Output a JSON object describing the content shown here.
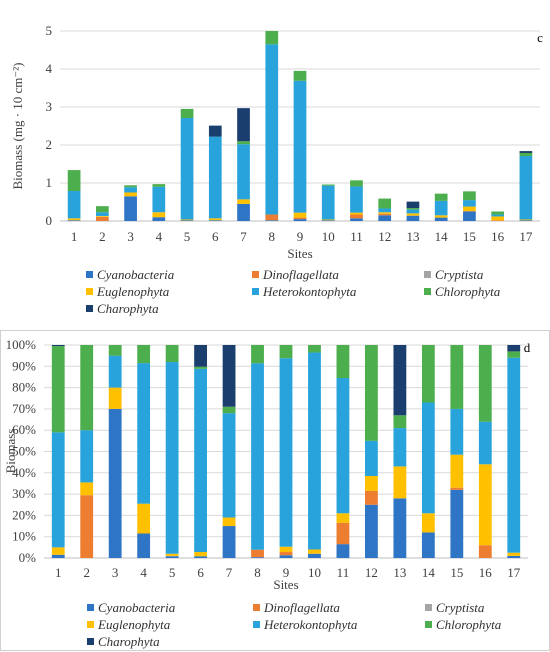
{
  "chart_data": [
    {
      "type": "bar",
      "stacked": true,
      "panel_label": "c",
      "ylabel": "Biomass (mg · 10 cm⁻²)",
      "xlabel": "Sites",
      "ylim": [
        0,
        5
      ],
      "yticks": [
        "0",
        "1",
        "2",
        "3",
        "4",
        "5"
      ],
      "grid": true,
      "legend_position": "bottom",
      "categories": [
        "1",
        "2",
        "3",
        "4",
        "5",
        "6",
        "7",
        "8",
        "9",
        "10",
        "11",
        "12",
        "13",
        "14",
        "15",
        "16",
        "17"
      ],
      "series": [
        {
          "name": "Cyanobacteria",
          "color": "#2e75c5",
          "values": [
            0.02,
            0.0,
            0.65,
            0.1,
            0.02,
            0.02,
            0.45,
            0.02,
            0.05,
            0.02,
            0.07,
            0.15,
            0.14,
            0.09,
            0.25,
            0.0,
            0.02
          ]
        },
        {
          "name": "Dinoflagellata",
          "color": "#ed7d31",
          "values": [
            0.0,
            0.11,
            0.0,
            0.0,
            0.0,
            0.0,
            0.0,
            0.15,
            0.04,
            0.0,
            0.1,
            0.04,
            0.0,
            0.0,
            0.01,
            0.02,
            0.0
          ]
        },
        {
          "name": "Cryptista",
          "color": "#a5a5a5",
          "values": [
            0.0,
            0.0,
            0.0,
            0.0,
            0.0,
            0.0,
            0.0,
            0.0,
            0.0,
            0.0,
            0.0,
            0.0,
            0.0,
            0.0,
            0.0,
            0.0,
            0.0
          ]
        },
        {
          "name": "Euglenophyta",
          "color": "#ffc000",
          "values": [
            0.05,
            0.02,
            0.1,
            0.13,
            0.02,
            0.05,
            0.12,
            0.0,
            0.13,
            0.02,
            0.05,
            0.04,
            0.06,
            0.06,
            0.12,
            0.1,
            0.02
          ]
        },
        {
          "name": "Heterokontophyta",
          "color": "#29a3dc",
          "values": [
            0.72,
            0.1,
            0.14,
            0.67,
            2.67,
            2.15,
            1.45,
            4.48,
            3.47,
            0.89,
            0.69,
            0.1,
            0.1,
            0.38,
            0.17,
            0.05,
            1.67
          ]
        },
        {
          "name": "Chlorophyta",
          "color": "#4cae4c",
          "values": [
            0.55,
            0.16,
            0.05,
            0.07,
            0.24,
            0.0,
            0.08,
            0.35,
            0.26,
            0.03,
            0.16,
            0.26,
            0.04,
            0.19,
            0.23,
            0.08,
            0.08
          ]
        },
        {
          "name": "Charophyta",
          "color": "#1a3e6e",
          "values": [
            0.0,
            0.0,
            0.0,
            0.0,
            0.0,
            0.29,
            0.87,
            0.0,
            0.0,
            0.0,
            0.0,
            0.0,
            0.17,
            0.0,
            0.0,
            0.0,
            0.05
          ]
        }
      ]
    },
    {
      "type": "bar",
      "stacked": true,
      "panel_label": "d",
      "ylabel": "Biomass",
      "xlabel": "Sites",
      "ylim": [
        0,
        100
      ],
      "yticks": [
        "0%",
        "10%",
        "20%",
        "30%",
        "40%",
        "50%",
        "60%",
        "70%",
        "80%",
        "90%",
        "100%"
      ],
      "grid": true,
      "legend_position": "bottom",
      "categories": [
        "1",
        "2",
        "3",
        "4",
        "5",
        "6",
        "7",
        "8",
        "9",
        "10",
        "11",
        "12",
        "13",
        "14",
        "15",
        "16",
        "17"
      ],
      "series": [
        {
          "name": "Cyanobacteria",
          "color": "#2e75c5",
          "values": [
            1.5,
            0,
            70,
            11.5,
            0.7,
            0.8,
            15,
            0.4,
            1.3,
            2,
            6.5,
            25,
            28,
            12,
            32,
            0,
            1
          ]
        },
        {
          "name": "Dinoflagellata",
          "color": "#ed7d31",
          "values": [
            0,
            29.5,
            0,
            0,
            0,
            0,
            0,
            3.5,
            1.5,
            0,
            10,
            6.5,
            0,
            0,
            1,
            6,
            0
          ]
        },
        {
          "name": "Cryptista",
          "color": "#a5a5a5",
          "values": [
            0,
            0,
            0,
            0,
            0.3,
            0,
            0,
            0,
            0,
            0,
            0,
            0,
            0,
            0,
            0,
            0,
            0
          ]
        },
        {
          "name": "Euglenophyta",
          "color": "#ffc000",
          "values": [
            3.5,
            6,
            10,
            14,
            1,
            2,
            4,
            0,
            2.5,
            2,
            4.5,
            7,
            15,
            9,
            15.5,
            38,
            1.5
          ]
        },
        {
          "name": "Heterokontophyta",
          "color": "#29a3dc",
          "values": [
            54,
            24.5,
            15,
            66,
            90,
            86,
            49,
            87.5,
            88.5,
            92.5,
            63.5,
            16.5,
            18,
            52,
            21.5,
            20,
            91.5
          ]
        },
        {
          "name": "Chlorophyta",
          "color": "#4cae4c",
          "values": [
            40.5,
            40,
            5,
            8.5,
            8,
            1,
            3,
            8.6,
            6.2,
            3.5,
            15.5,
            45,
            6,
            27,
            30,
            36,
            3
          ]
        },
        {
          "name": "Charophyta",
          "color": "#1a3e6e",
          "values": [
            0.5,
            0,
            0,
            0,
            0,
            10.2,
            29,
            0,
            0,
            0,
            0,
            0,
            33,
            0,
            0,
            0,
            3
          ]
        }
      ]
    }
  ]
}
